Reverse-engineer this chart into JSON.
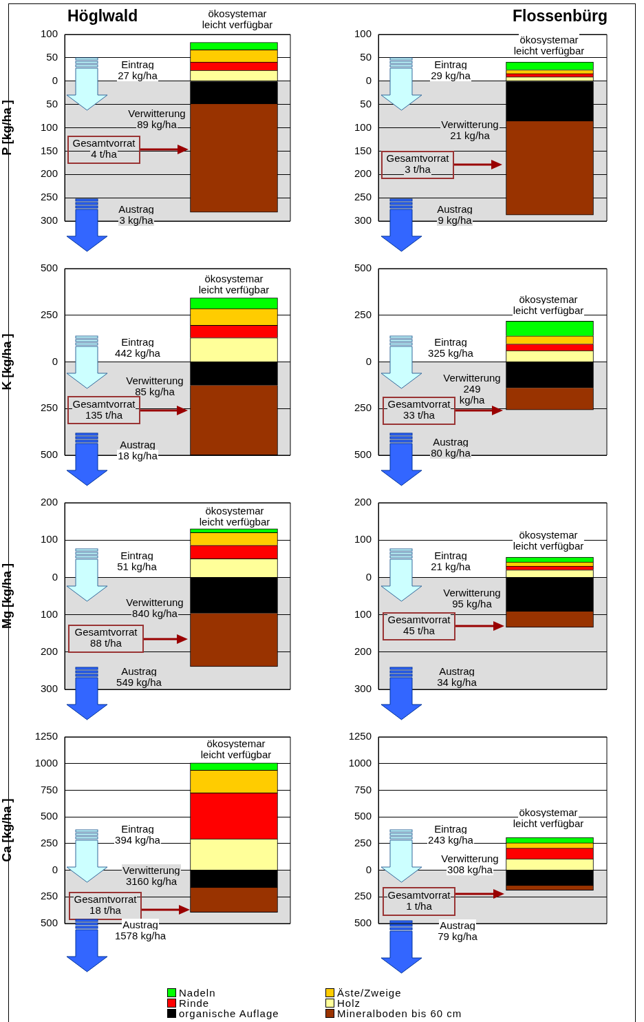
{
  "chart_data": [
    {
      "type": "bar",
      "title": "Höglwald",
      "ylabel": "P [kg/ha ]",
      "categories": [
        null
      ],
      "stacked": true,
      "grid": "y",
      "legend": "bottom",
      "ylim": [
        -300,
        100
      ],
      "yticks": [
        100,
        50,
        0,
        {
          "value": -50,
          "label": "50"
        },
        {
          "value": -100,
          "label": "100"
        },
        {
          "value": -150,
          "label": "150"
        },
        {
          "value": -200,
          "label": "200"
        },
        {
          "value": -250,
          "label": "250"
        },
        {
          "value": -300,
          "label": "300"
        }
      ],
      "bands": [
        {
          "axis": "y",
          "from": -300,
          "to": 0,
          "color": "#dddddd"
        }
      ],
      "annotations": [
        "ökosystemar\nleicht verfügbar",
        "Eintrag\n27 kg/ha",
        "Verwitterung\n89 kg/ha",
        "Gesamtvorrat\n4 t/ha",
        "Austrag\n3 kg/ha"
      ],
      "series": [
        {
          "name": "Holz",
          "color": "#ffff99",
          "values": [
            23
          ]
        },
        {
          "name": "Rinde",
          "color": "#ff0000",
          "values": [
            18
          ]
        },
        {
          "name": "Äste/Zweige",
          "color": "#ffcc00",
          "values": [
            26
          ]
        },
        {
          "name": "Nadeln",
          "color": "#00ff00",
          "values": [
            16
          ]
        },
        {
          "name": "organische Auflage",
          "color": "#000000",
          "values": [
            -49
          ]
        },
        {
          "name": "Mineralboden bis 60 cm",
          "color": "#993300",
          "values": [
            -232
          ]
        }
      ]
    },
    {
      "type": "bar",
      "title": "Flossenbürg",
      "categories": [
        null
      ],
      "stacked": true,
      "grid": "y",
      "ylim": [
        -300,
        100
      ],
      "yticks": [
        100,
        50,
        0,
        {
          "value": -50,
          "label": "50"
        },
        {
          "value": -100,
          "label": "100"
        },
        {
          "value": -150,
          "label": "150"
        },
        {
          "value": -200,
          "label": "200"
        },
        {
          "value": -250,
          "label": "250"
        },
        {
          "value": -300,
          "label": "300"
        }
      ],
      "bands": [
        {
          "axis": "y",
          "from": -300,
          "to": 0,
          "color": "#dddddd"
        }
      ],
      "annotations": [
        "ökosystemar\nleicht verfügbar",
        "Eintrag\n29 kg/ha",
        "Verwitterung\n21 kg/ha",
        "Gesamtvorrat\n3 t/ha",
        "Austrag\n9 kg/ha"
      ],
      "series": [
        {
          "color": "#ffff99",
          "values": [
            9
          ]
        },
        {
          "color": "#ff0000",
          "values": [
            7
          ]
        },
        {
          "color": "#ffcc00",
          "values": [
            8
          ]
        },
        {
          "color": "#00ff00",
          "values": [
            17
          ]
        },
        {
          "color": "#000000",
          "values": [
            -86
          ]
        },
        {
          "color": "#993300",
          "values": [
            -201
          ]
        }
      ]
    },
    {
      "type": "bar",
      "ylabel": "K [kg/ha ]",
      "categories": [
        null
      ],
      "stacked": true,
      "grid": "y",
      "ylim": [
        -500,
        500
      ],
      "yticks": [
        500,
        250,
        0,
        {
          "value": -250,
          "label": "250"
        },
        {
          "value": -500,
          "label": "500"
        }
      ],
      "bands": [
        {
          "axis": "y",
          "from": -500,
          "to": 0,
          "color": "#dddddd"
        }
      ],
      "annotations": [
        "ökosystemar\nleicht verfügbar",
        "Eintrag\n442 kg/ha",
        "Verwitterung\n85 kg/ha",
        "Gesamtvorrat\n135 t/ha",
        "Austrag\n18 kg/ha"
      ],
      "series": [
        {
          "color": "#ffff99",
          "values": [
            129
          ]
        },
        {
          "color": "#ff0000",
          "values": [
            67
          ]
        },
        {
          "color": "#ffcc00",
          "values": [
            90
          ]
        },
        {
          "color": "#00ff00",
          "values": [
            57
          ]
        },
        {
          "color": "#000000",
          "values": [
            -125
          ]
        },
        {
          "color": "#993300",
          "values": [
            -375
          ]
        }
      ]
    },
    {
      "type": "bar",
      "categories": [
        null
      ],
      "stacked": true,
      "grid": "y",
      "ylim": [
        -500,
        500
      ],
      "yticks": [
        500,
        250,
        0,
        {
          "value": -250,
          "label": "250"
        },
        {
          "value": -500,
          "label": "500"
        }
      ],
      "bands": [
        {
          "axis": "y",
          "from": -500,
          "to": 0,
          "color": "#dddddd"
        }
      ],
      "annotations": [
        "ökosystemar\nleicht verfügbar",
        "Eintrag\n325 kg/ha",
        "Verwitterung\n249\nkg/ha",
        "Gesamtvorrat\n33 t/ha",
        "Austrag\n80 kg/ha"
      ],
      "series": [
        {
          "color": "#ffff99",
          "values": [
            61
          ]
        },
        {
          "color": "#ff0000",
          "values": [
            35
          ]
        },
        {
          "color": "#ffcc00",
          "values": [
            43
          ]
        },
        {
          "color": "#00ff00",
          "values": [
            79
          ]
        },
        {
          "color": "#000000",
          "values": [
            -139
          ]
        },
        {
          "color": "#993300",
          "values": [
            -118
          ]
        }
      ]
    },
    {
      "type": "bar",
      "ylabel": "Mg [kg/ha ]",
      "categories": [
        null
      ],
      "stacked": true,
      "grid": "y",
      "ylim": [
        -300,
        200
      ],
      "yticks": [
        200,
        100,
        0,
        {
          "value": -100,
          "label": "100"
        },
        {
          "value": -200,
          "label": "200"
        },
        {
          "value": -300,
          "label": "300"
        }
      ],
      "bands": [
        {
          "axis": "y",
          "from": -300,
          "to": 0,
          "color": "#dddddd"
        }
      ],
      "annotations": [
        "ökosystemar\nleicht verfügbar",
        "Eintrag\n51 kg/ha",
        "Verwitterung\n840 kg/ha",
        "Gesamtvorrat\n88 t/ha",
        "Austrag\n549 kg/ha"
      ],
      "series": [
        {
          "color": "#ffff99",
          "values": [
            50
          ]
        },
        {
          "color": "#ff0000",
          "values": [
            36
          ]
        },
        {
          "color": "#ffcc00",
          "values": [
            34
          ]
        },
        {
          "color": "#00ff00",
          "values": [
            10
          ]
        },
        {
          "color": "#000000",
          "values": [
            -96
          ]
        },
        {
          "color": "#993300",
          "values": [
            -143
          ]
        }
      ]
    },
    {
      "type": "bar",
      "categories": [
        null
      ],
      "stacked": true,
      "grid": "y",
      "ylim": [
        -300,
        200
      ],
      "yticks": [
        200,
        100,
        0,
        {
          "value": -100,
          "label": "100"
        },
        {
          "value": -200,
          "label": "200"
        },
        {
          "value": -300,
          "label": "300"
        }
      ],
      "bands": [
        {
          "axis": "y",
          "from": -300,
          "to": 0,
          "color": "#dddddd"
        }
      ],
      "annotations": [
        "ökosystemar\nleicht verfügbar",
        "Eintrag\n21 kg/ha",
        "Verwitterung\n95 kg/ha",
        "Gesamtvorrat\n45 t/ha",
        "Austrag\n34 kg/ha"
      ],
      "series": [
        {
          "color": "#ffff99",
          "values": [
            20
          ]
        },
        {
          "color": "#ff0000",
          "values": [
            10
          ]
        },
        {
          "color": "#ffcc00",
          "values": [
            11
          ]
        },
        {
          "color": "#00ff00",
          "values": [
            13
          ]
        },
        {
          "color": "#000000",
          "values": [
            -91
          ]
        },
        {
          "color": "#993300",
          "values": [
            -43
          ]
        }
      ]
    },
    {
      "type": "bar",
      "ylabel": "Ca [kg/ha ]",
      "categories": [
        null
      ],
      "stacked": true,
      "grid": "y",
      "ylim": [
        -500,
        1250
      ],
      "yticks": [
        1250,
        1000,
        750,
        500,
        250,
        0,
        {
          "value": -250,
          "label": "250"
        },
        {
          "value": -500,
          "label": "500"
        }
      ],
      "bands": [
        {
          "axis": "y",
          "from": -500,
          "to": 0,
          "color": "#dddddd"
        }
      ],
      "annotations": [
        "ökosystemar\nleicht verfügbar",
        "Eintrag\n394 kg/ha",
        "Verwitterung\n3160 kg/ha",
        "Gesamtvorrat\n18 t/ha",
        "Austrag\n1578 kg/ha"
      ],
      "series": [
        {
          "color": "#ffff99",
          "values": [
            294
          ]
        },
        {
          "color": "#ff0000",
          "values": [
            431
          ]
        },
        {
          "color": "#ffcc00",
          "values": [
            213
          ]
        },
        {
          "color": "#00ff00",
          "values": [
            68
          ]
        },
        {
          "color": "#000000",
          "values": [
            -163
          ]
        },
        {
          "color": "#993300",
          "values": [
            -231
          ]
        }
      ]
    },
    {
      "type": "bar",
      "categories": [
        null
      ],
      "stacked": true,
      "grid": "y",
      "ylim": [
        -500,
        1250
      ],
      "yticks": [
        1250,
        1000,
        750,
        500,
        250,
        0,
        {
          "value": -250,
          "label": "250"
        },
        {
          "value": -500,
          "label": "500"
        }
      ],
      "bands": [
        {
          "axis": "y",
          "from": -500,
          "to": 0,
          "color": "#dddddd"
        }
      ],
      "annotations": [
        "ökosystemar\nleicht verfügbar",
        "Eintrag\n243 kg/ha",
        "Verwitterung\n308 kg/ha",
        "Gesamtvorrat\n1 t/ha",
        "Austrag\n79 kg/ha"
      ],
      "series": [
        {
          "color": "#ffff99",
          "values": [
            106
          ]
        },
        {
          "color": "#ff0000",
          "values": [
            100
          ]
        },
        {
          "color": "#ffcc00",
          "values": [
            50
          ]
        },
        {
          "color": "#00ff00",
          "values": [
            50
          ]
        },
        {
          "color": "#000000",
          "values": [
            -144
          ]
        },
        {
          "color": "#993300",
          "values": [
            -44
          ]
        }
      ]
    }
  ]
}
